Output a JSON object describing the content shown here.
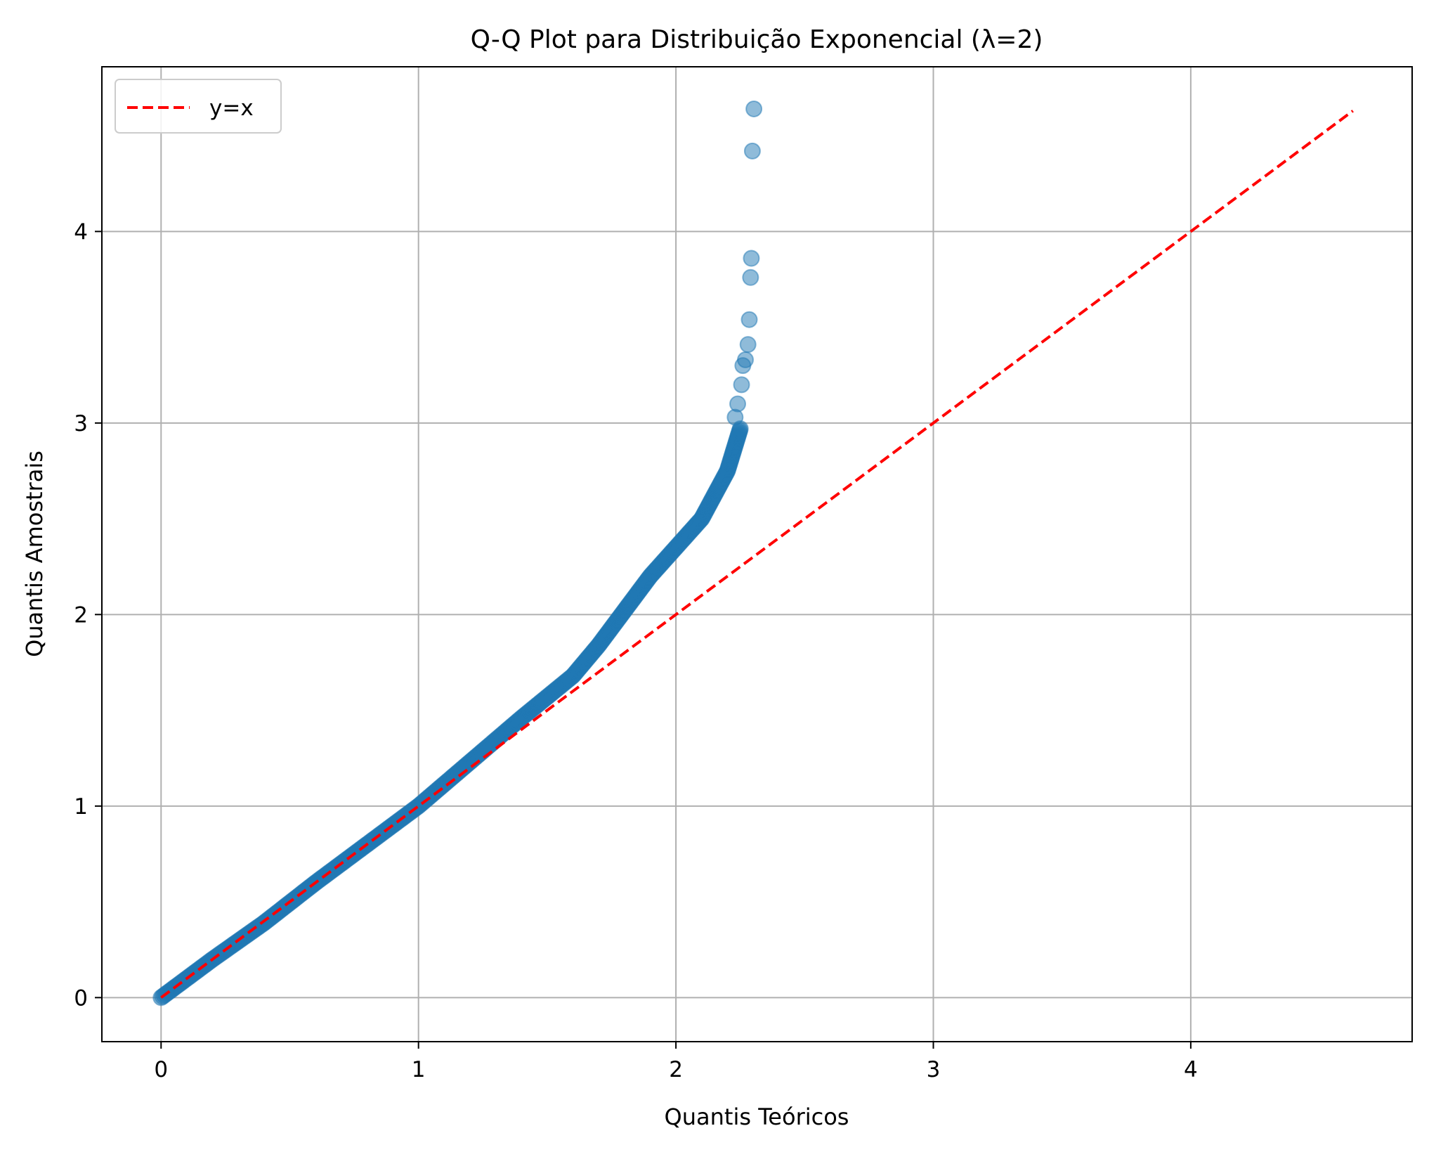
{
  "chart_data": {
    "type": "scatter",
    "title": "Q-Q Plot para Distribuição Exponencial (λ=2)",
    "xlabel": "Quantis Teóricos",
    "ylabel": "Quantis Amostrais",
    "xlim": [
      -0.23,
      4.86
    ],
    "ylim": [
      -0.23,
      4.86
    ],
    "xticks": [
      "0",
      "1",
      "2",
      "3",
      "4"
    ],
    "yticks": [
      "0",
      "1",
      "2",
      "3",
      "4"
    ],
    "grid": true,
    "legend_position": "top-left",
    "colors": {
      "points": "#1f77b4",
      "reference": "#ff0000",
      "grid": "#b0b0b0"
    },
    "series": [
      {
        "kind": "points",
        "curve": [
          [
            0.0,
            0.0
          ],
          [
            0.2,
            0.2
          ],
          [
            0.4,
            0.39
          ],
          [
            0.6,
            0.6
          ],
          [
            0.8,
            0.8
          ],
          [
            1.0,
            1.0
          ],
          [
            1.2,
            1.23
          ],
          [
            1.4,
            1.46
          ],
          [
            1.5,
            1.57
          ],
          [
            1.6,
            1.68
          ],
          [
            1.7,
            1.84
          ],
          [
            1.8,
            2.02
          ],
          [
            1.9,
            2.2
          ],
          [
            2.0,
            2.35
          ],
          [
            2.1,
            2.5
          ],
          [
            2.2,
            2.75
          ],
          [
            2.25,
            2.97
          ]
        ],
        "tail": [
          [
            2.23,
            3.03
          ],
          [
            2.24,
            3.1
          ],
          [
            2.255,
            3.2
          ],
          [
            2.26,
            3.3
          ],
          [
            2.27,
            3.33
          ],
          [
            2.28,
            3.41
          ],
          [
            2.285,
            3.54
          ],
          [
            2.29,
            3.76
          ],
          [
            2.293,
            3.86
          ],
          [
            2.297,
            4.42
          ],
          [
            2.303,
            4.64
          ]
        ]
      },
      {
        "name": "y=x",
        "kind": "reference-line",
        "x": [
          0.0,
          4.63
        ],
        "y": [
          0.0,
          4.63
        ]
      }
    ]
  }
}
